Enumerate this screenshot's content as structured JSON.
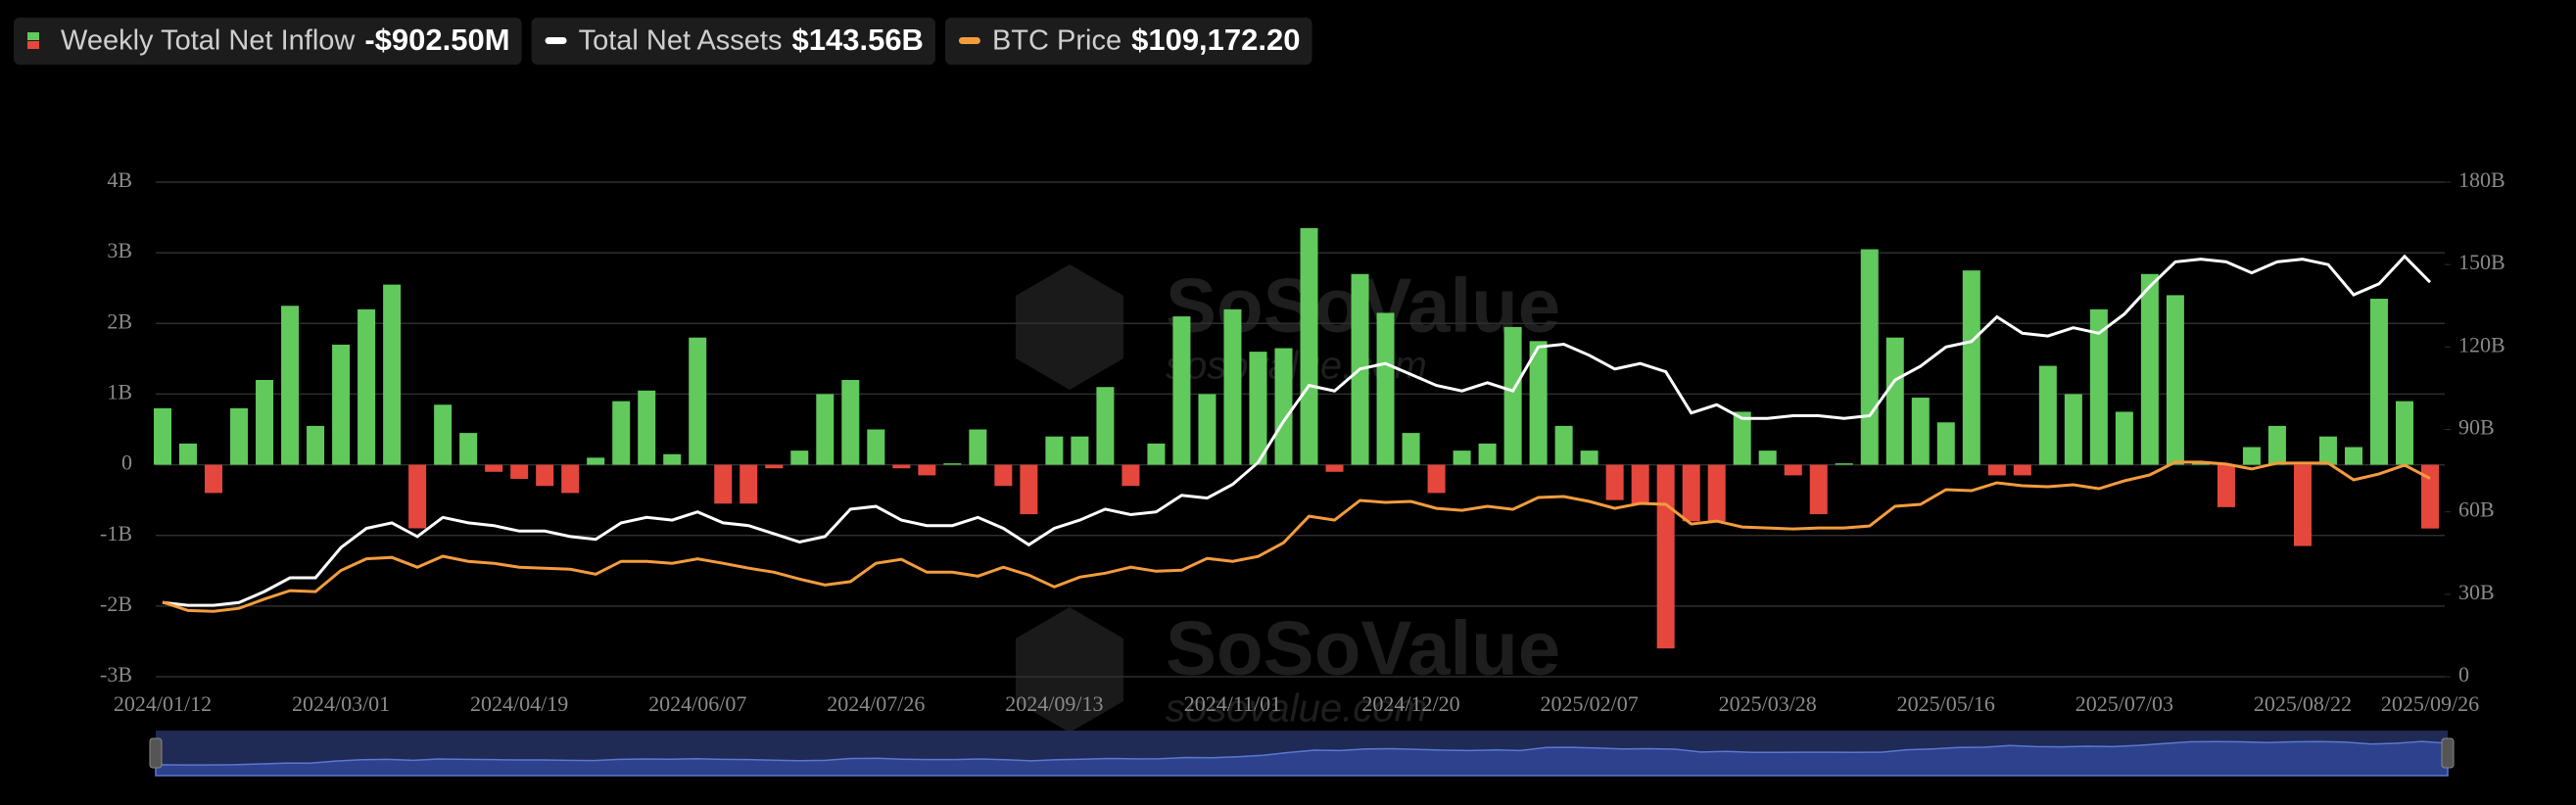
{
  "chart_data": {
    "type": "bar",
    "categories": [
      "2024/01/12",
      null,
      null,
      null,
      null,
      null,
      null,
      "2024/03/01",
      null,
      null,
      null,
      null,
      null,
      null,
      "2024/04/19",
      null,
      null,
      null,
      null,
      null,
      null,
      "2024/06/07",
      null,
      null,
      null,
      null,
      null,
      null,
      "2024/07/26",
      null,
      null,
      null,
      null,
      null,
      null,
      "2024/09/13",
      null,
      null,
      null,
      null,
      null,
      null,
      "2024/11/01",
      null,
      null,
      null,
      null,
      null,
      null,
      "2024/12/20",
      null,
      null,
      null,
      null,
      null,
      null,
      "2025/02/07",
      null,
      null,
      null,
      null,
      null,
      null,
      "2025/03/28",
      null,
      null,
      null,
      null,
      null,
      null,
      "2025/05/16",
      null,
      null,
      null,
      null,
      null,
      null,
      "2025/07/03",
      null,
      null,
      null,
      null,
      null,
      null,
      "2025/08/22",
      null,
      null,
      null,
      null,
      "2025/09/26"
    ],
    "series": [
      {
        "name": "Weekly Total Net Inflow",
        "type": "bar",
        "latest_label": "-$902.50M",
        "color": "#62c95d",
        "negative_color": "#e5473d",
        "values": [
          0.8,
          0.3,
          -0.4,
          0.8,
          1.2,
          2.25,
          0.55,
          1.7,
          2.2,
          2.55,
          -0.9,
          0.85,
          0.45,
          -0.1,
          -0.2,
          -0.3,
          -0.4,
          0.1,
          0.9,
          1.05,
          0.15,
          1.8,
          -0.55,
          -0.55,
          -0.05,
          0.2,
          1.0,
          1.2,
          0.5,
          -0.05,
          -0.15,
          0.02,
          0.5,
          -0.3,
          -0.7,
          0.4,
          0.4,
          1.1,
          -0.3,
          0.3,
          2.1,
          1.0,
          2.2,
          1.6,
          1.65,
          3.35,
          -0.1,
          2.7,
          2.15,
          0.45,
          -0.4,
          0.2,
          0.3,
          1.95,
          1.75,
          0.55,
          0.2,
          -0.5,
          -0.55,
          -2.6,
          -0.8,
          -0.8,
          0.75,
          0.2,
          -0.15,
          -0.7,
          0.02,
          3.05,
          1.8,
          0.95,
          0.6,
          2.75,
          -0.15,
          -0.15,
          1.4,
          1.0,
          2.2,
          0.75,
          2.7,
          2.4,
          0.05,
          -0.6,
          0.25,
          0.55,
          -1.15,
          0.4,
          0.25,
          2.35,
          0.9,
          -0.9025
        ]
      },
      {
        "name": "Total Net Assets",
        "type": "line",
        "axis": "y2",
        "latest_label": "$143.56B",
        "color": "#ffffff",
        "values": [
          27,
          26,
          26,
          27,
          31,
          36,
          36,
          47,
          54,
          56,
          51,
          58,
          56,
          55,
          53,
          53,
          51,
          50,
          56,
          58,
          57,
          60,
          56,
          55,
          52,
          49,
          51,
          61,
          62,
          57,
          55,
          55,
          58,
          54,
          48,
          54,
          57,
          61,
          59,
          60,
          66,
          65,
          70,
          78,
          93,
          106,
          104,
          112,
          114,
          110,
          106,
          104,
          107,
          104,
          120,
          121,
          117,
          112,
          114,
          111,
          96,
          99,
          94,
          94,
          95,
          95,
          94,
          95,
          108,
          113,
          120,
          122,
          131,
          125,
          124,
          127,
          125,
          132,
          142,
          151,
          152,
          151,
          147,
          151,
          152,
          150,
          139,
          143,
          153,
          143.56
        ]
      },
      {
        "name": "BTC Price",
        "type": "line",
        "axis": "y3",
        "latest_label": "$109,172.20",
        "color": "#f39c3d",
        "values": [
          46300,
          42000,
          41600,
          43100,
          47800,
          52100,
          51600,
          62400,
          68300,
          69000,
          64000,
          69600,
          67000,
          66000,
          64000,
          63500,
          63000,
          60500,
          67000,
          67000,
          66000,
          68300,
          66000,
          63500,
          61500,
          58000,
          55000,
          56700,
          66000,
          68000,
          61500,
          61500,
          59500,
          64000,
          60000,
          54000,
          59000,
          61000,
          64000,
          62000,
          62500,
          68500,
          67000,
          69500,
          76500,
          90000,
          88000,
          98000,
          97000,
          97500,
          94000,
          93000,
          95000,
          93500,
          99500,
          100000,
          97500,
          94000,
          96500,
          96000,
          86000,
          87500,
          84500,
          84000,
          83500,
          84000,
          84000,
          85000,
          95000,
          96000,
          103500,
          103000,
          107000,
          105500,
          105000,
          106000,
          104000,
          108000,
          111000,
          117500,
          117500,
          116500,
          114000,
          117000,
          117000,
          117000,
          108500,
          111500,
          116000,
          109172.2
        ]
      }
    ],
    "ylim": [
      -3,
      4
    ],
    "yticks": [
      {
        "value": -3,
        "label": "-3B"
      },
      {
        "value": -2,
        "label": "-2B"
      },
      {
        "value": -1,
        "label": "-1B"
      },
      0,
      {
        "value": 1,
        "label": "1B"
      },
      {
        "value": 2,
        "label": "2B"
      },
      {
        "value": 3,
        "label": "3B"
      },
      {
        "value": 4,
        "label": "4B"
      }
    ],
    "y2lim": [
      0,
      180
    ],
    "y2ticks": [
      0,
      {
        "value": 30,
        "label": "30B"
      },
      {
        "value": 60,
        "label": "60B"
      },
      {
        "value": 90,
        "label": "90B"
      },
      {
        "value": 120,
        "label": "120B"
      },
      {
        "value": 150,
        "label": "150B"
      },
      {
        "value": 180,
        "label": "180B"
      }
    ],
    "y3lim": [
      8300,
      260000
    ],
    "grid": true,
    "watermark": {
      "brand": "SoSoValue",
      "site": "sosovalue.com"
    }
  }
}
